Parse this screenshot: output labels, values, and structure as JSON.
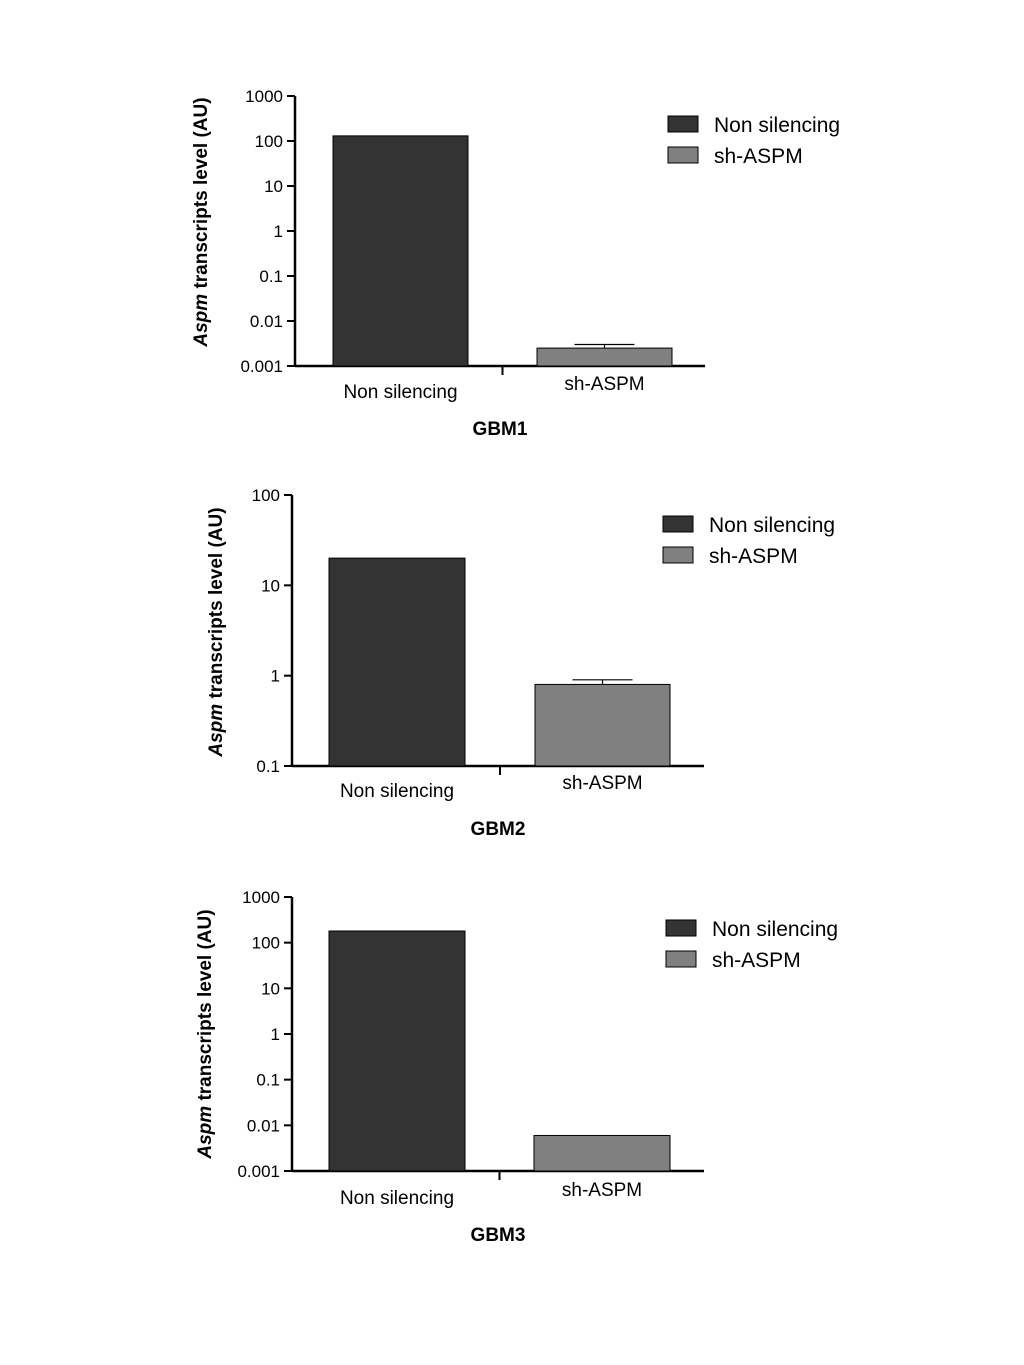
{
  "chart_data": [
    {
      "type": "bar",
      "title": "",
      "xlabel": "GBM1",
      "ylabel_italic": "Aspm",
      "ylabel": "transcripts level (AU)",
      "yscale": "log",
      "ylim": [
        0.001,
        1000
      ],
      "yticks": [
        "0.001",
        "0.01",
        "0.1",
        "1",
        "10",
        "100",
        "1000"
      ],
      "categories": [
        "Non silencing",
        "sh-ASPM"
      ],
      "values": [
        130,
        0.0025
      ],
      "errors": [
        0,
        0.0005
      ],
      "legend": {
        "position": "top-right",
        "items": [
          "Non silencing",
          "sh-ASPM"
        ]
      },
      "colors": [
        "#333333",
        "#808080"
      ]
    },
    {
      "type": "bar",
      "title": "",
      "xlabel": "GBM2",
      "ylabel_italic": "Aspm",
      "ylabel": "transcripts level (AU)",
      "yscale": "log",
      "ylim": [
        0.1,
        100
      ],
      "yticks": [
        "0.1",
        "1",
        "10",
        "100"
      ],
      "categories": [
        "Non silencing",
        "sh-ASPM"
      ],
      "values": [
        20,
        0.8
      ],
      "errors": [
        0,
        0.1
      ],
      "legend": {
        "position": "top-right",
        "items": [
          "Non silencing",
          "sh-ASPM"
        ]
      },
      "colors": [
        "#333333",
        "#808080"
      ]
    },
    {
      "type": "bar",
      "title": "",
      "xlabel": "GBM3",
      "ylabel_italic": "Aspm",
      "ylabel": "transcripts level (AU)",
      "yscale": "log",
      "ylim": [
        0.001,
        1000
      ],
      "yticks": [
        "0.001",
        "0.01",
        "0.1",
        "1",
        "10",
        "100",
        "1000"
      ],
      "categories": [
        "Non silencing",
        "sh-ASPM"
      ],
      "values": [
        180,
        0.006
      ],
      "errors": [
        0,
        0
      ],
      "legend": {
        "position": "top-right",
        "items": [
          "Non silencing",
          "sh-ASPM"
        ]
      },
      "colors": [
        "#333333",
        "#808080"
      ]
    }
  ]
}
